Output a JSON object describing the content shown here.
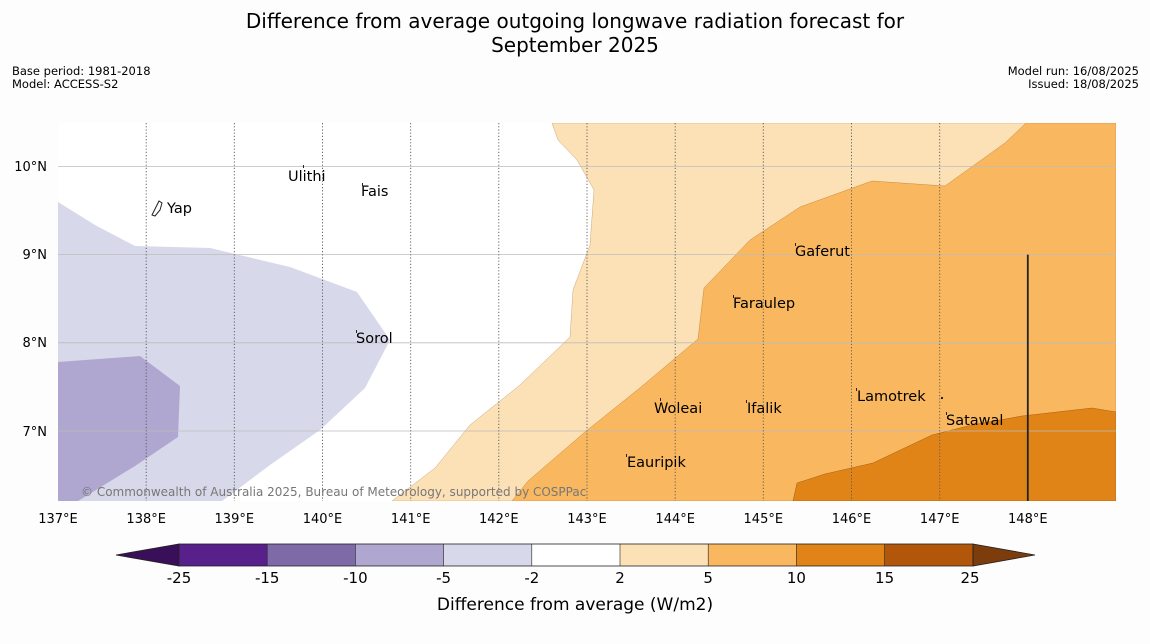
{
  "title_line1": "Difference from average outgoing longwave radiation forecast for",
  "title_line2": "September 2025",
  "meta_left": {
    "base_period": "Base period: 1981-2018",
    "model": "Model: ACCESS-S2"
  },
  "meta_right": {
    "model_run": "Model run: 16/08/2025",
    "issued": "Issued: 18/08/2025"
  },
  "credit": "© Commonwealth of Australia 2025, Bureau of Meteorology, supported by COSPPac",
  "longitude_labels": [
    "137°E",
    "138°E",
    "139°E",
    "140°E",
    "141°E",
    "142°E",
    "143°E",
    "144°E",
    "145°E",
    "146°E",
    "147°E",
    "148°E"
  ],
  "latitude_labels": [
    "10°N",
    "9°N",
    "8°N",
    "7°N"
  ],
  "places": [
    {
      "name": "Yap",
      "lon": 138.3,
      "lat": 9.53
    },
    {
      "name": "Ulithi",
      "lon": 139.65,
      "lat": 9.85
    },
    {
      "name": "Fais",
      "lon": 140.5,
      "lat": 9.72
    },
    {
      "name": "Gaferut",
      "lon": 145.35,
      "lat": 9.02
    },
    {
      "name": "Faraulep",
      "lon": 144.65,
      "lat": 8.43
    },
    {
      "name": "Sorol",
      "lon": 140.4,
      "lat": 8.04
    },
    {
      "name": "Lamotrek",
      "lon": 146.05,
      "lat": 7.37
    },
    {
      "name": "Woleai",
      "lon": 143.8,
      "lat": 7.26
    },
    {
      "name": "Ifalik",
      "lon": 144.75,
      "lat": 7.26
    },
    {
      "name": "Satawal",
      "lon": 147.1,
      "lat": 7.12
    },
    {
      "name": "Eauripik",
      "lon": 143.48,
      "lat": 6.65
    }
  ],
  "colorbar": {
    "label": "Difference from average (W/m2)",
    "ticks": [
      "-25",
      "-15",
      "-10",
      "-5",
      "-2",
      "2",
      "5",
      "10",
      "15",
      "25"
    ],
    "colors": [
      "#3a0f5a",
      "#58208a",
      "#7f6aa8",
      "#afa7d0",
      "#d7d8ea",
      "#ffffff",
      "#fce0b6",
      "#f9b75f",
      "#e08417",
      "#b25709",
      "#7c3c0c"
    ]
  }
}
